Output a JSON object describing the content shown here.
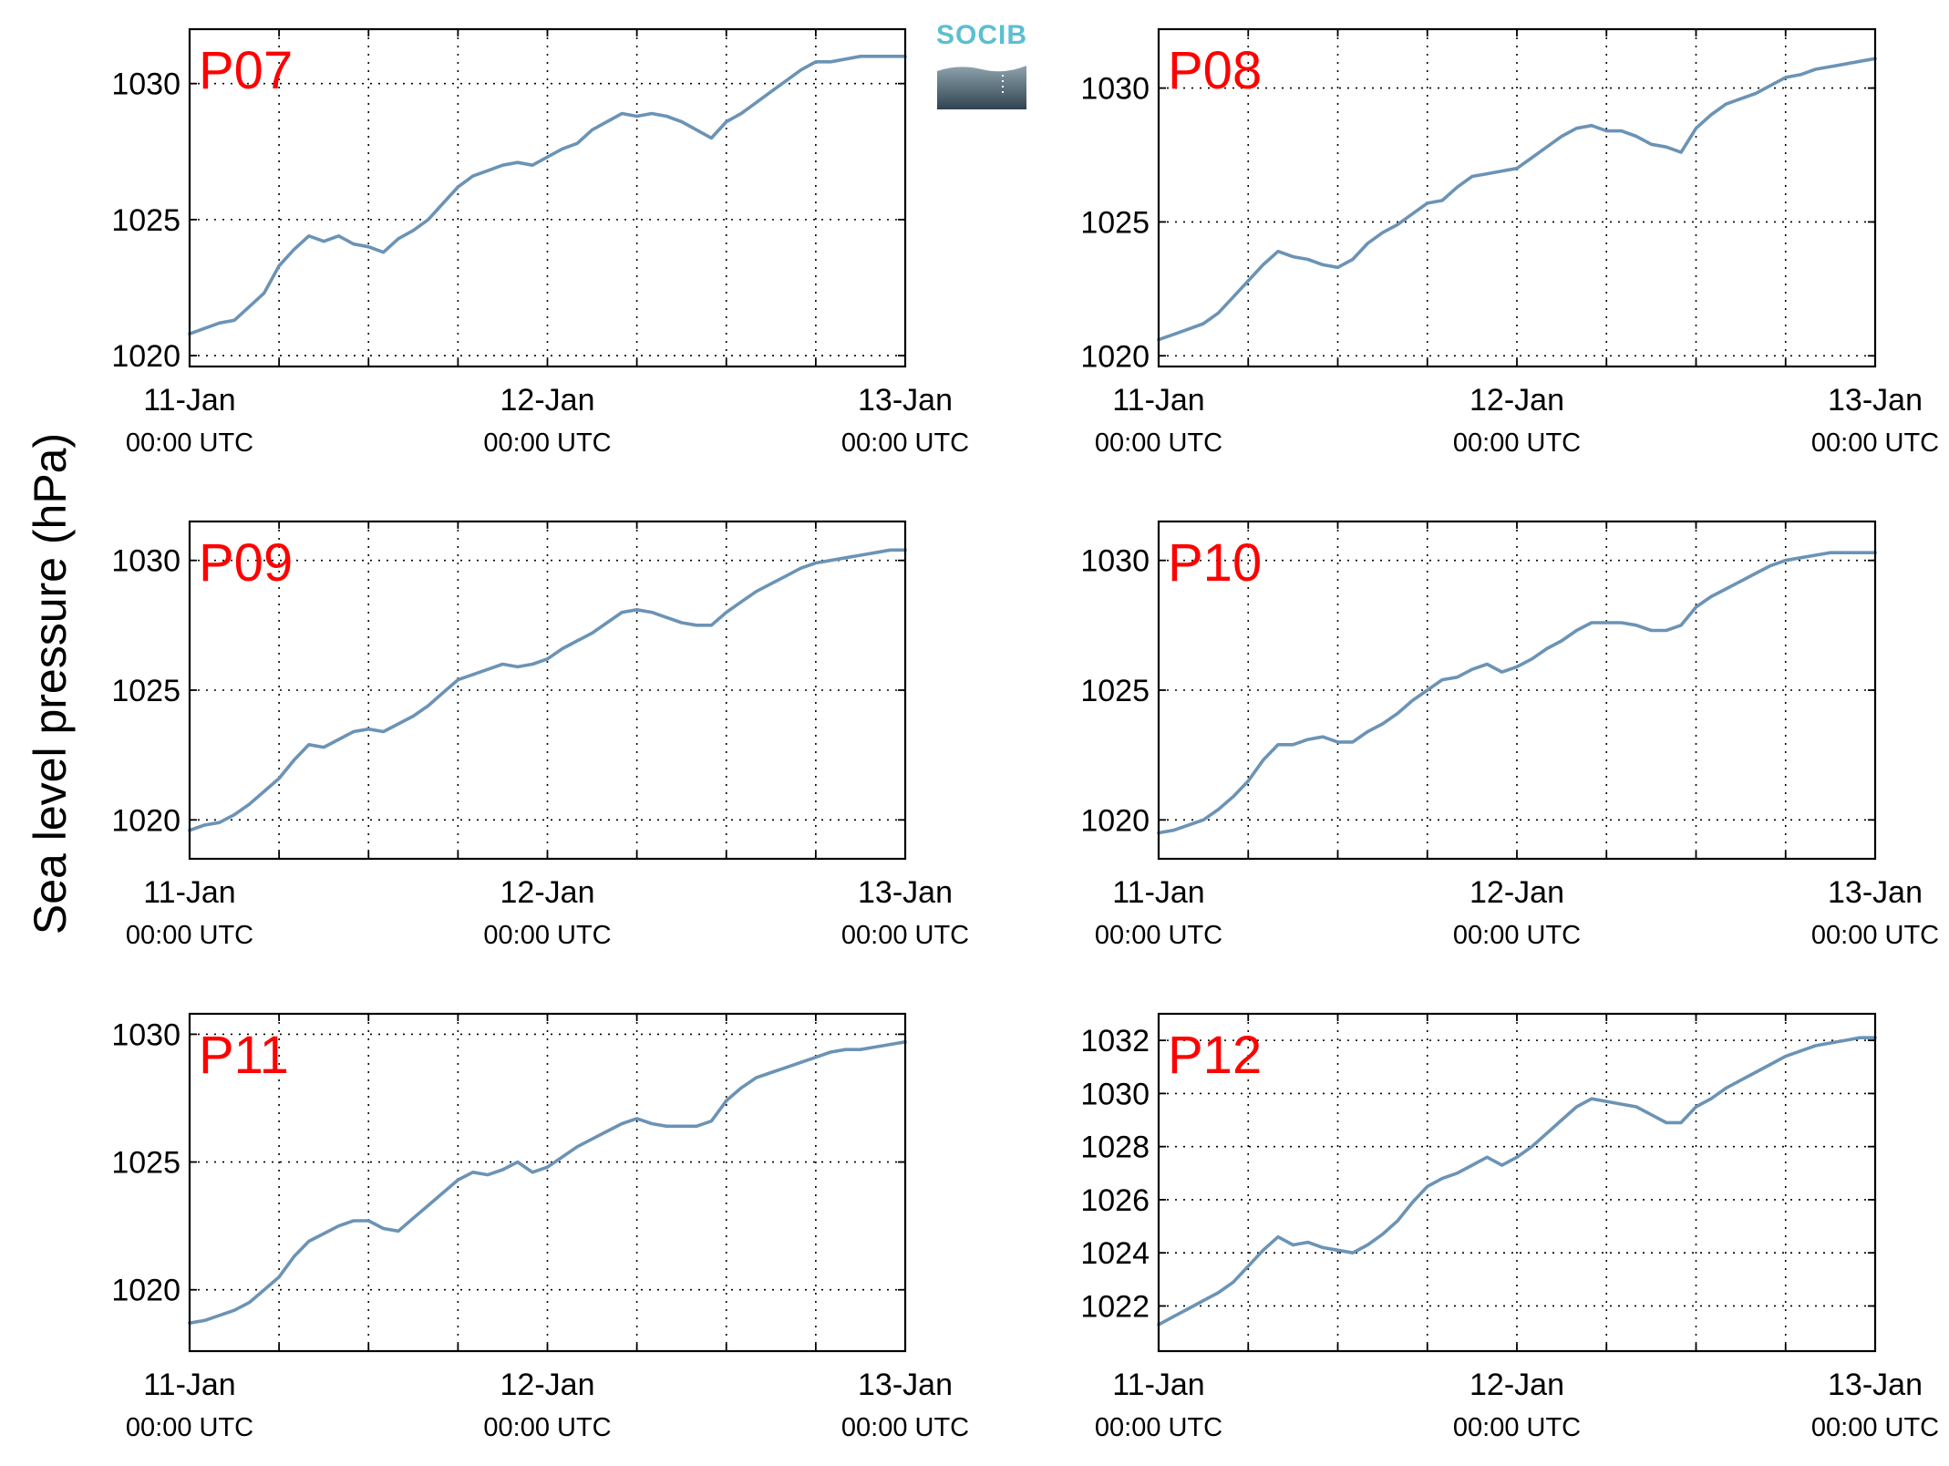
{
  "figure": {
    "ylabel": "Sea level pressure (hPa)",
    "logo": {
      "text": "SOCIB",
      "color": "#5bbfd0"
    },
    "line_color": "#6b93b5",
    "label_color": "#ff0000"
  },
  "chart_data": [
    {
      "type": "line",
      "panel": "P07",
      "label": "P07",
      "xlim": [
        0,
        48
      ],
      "ylim": [
        1019.6,
        1032
      ],
      "yticks": [
        "1020",
        "1025",
        "1030"
      ],
      "ytick_values": [
        1020,
        1025,
        1030
      ],
      "xticks": [
        {
          "x": 0,
          "date": "11-Jan",
          "time": "00:00 UTC"
        },
        {
          "x": 24,
          "date": "12-Jan",
          "time": "00:00 UTC"
        },
        {
          "x": 48,
          "date": "13-Jan",
          "time": "00:00 UTC"
        }
      ],
      "x_grid": [
        6,
        12,
        18,
        24,
        30,
        36,
        42
      ],
      "x": [
        0,
        1,
        2,
        3,
        4,
        5,
        6,
        7,
        8,
        9,
        10,
        11,
        12,
        13,
        14,
        15,
        16,
        17,
        18,
        19,
        20,
        21,
        22,
        23,
        24,
        25,
        26,
        27,
        28,
        29,
        30,
        31,
        32,
        33,
        34,
        35,
        36,
        37,
        38,
        39,
        40,
        41,
        42,
        43,
        44,
        45,
        46,
        47,
        48
      ],
      "y": [
        1020.8,
        1021.0,
        1021.2,
        1021.3,
        1021.8,
        1022.3,
        1023.3,
        1023.9,
        1024.4,
        1024.2,
        1024.4,
        1024.1,
        1024.0,
        1023.8,
        1024.3,
        1024.6,
        1025.0,
        1025.6,
        1026.2,
        1026.6,
        1026.8,
        1027.0,
        1027.1,
        1027.0,
        1027.3,
        1027.6,
        1027.8,
        1028.3,
        1028.6,
        1028.9,
        1028.8,
        1028.9,
        1028.8,
        1028.6,
        1028.3,
        1028.0,
        1028.6,
        1028.9,
        1029.3,
        1029.7,
        1030.1,
        1030.5,
        1030.8,
        1030.8,
        1030.9,
        1031.0,
        1031.0,
        1031.0,
        1031.0
      ]
    },
    {
      "type": "line",
      "panel": "P08",
      "label": "P08",
      "xlim": [
        0,
        48
      ],
      "ylim": [
        1019.6,
        1032.2
      ],
      "yticks": [
        "1020",
        "1025",
        "1030"
      ],
      "ytick_values": [
        1020,
        1025,
        1030
      ],
      "xticks": [
        {
          "x": 0,
          "date": "11-Jan",
          "time": "00:00 UTC"
        },
        {
          "x": 24,
          "date": "12-Jan",
          "time": "00:00 UTC"
        },
        {
          "x": 48,
          "date": "13-Jan",
          "time": "00:00 UTC"
        }
      ],
      "x_grid": [
        6,
        12,
        18,
        24,
        30,
        36,
        42
      ],
      "x": [
        0,
        1,
        2,
        3,
        4,
        5,
        6,
        7,
        8,
        9,
        10,
        11,
        12,
        13,
        14,
        15,
        16,
        17,
        18,
        19,
        20,
        21,
        22,
        23,
        24,
        25,
        26,
        27,
        28,
        29,
        30,
        31,
        32,
        33,
        34,
        35,
        36,
        37,
        38,
        39,
        40,
        41,
        42,
        43,
        44,
        45,
        46,
        47,
        48
      ],
      "y": [
        1020.6,
        1020.8,
        1021.0,
        1021.2,
        1021.6,
        1022.2,
        1022.8,
        1023.4,
        1023.9,
        1023.7,
        1023.6,
        1023.4,
        1023.3,
        1023.6,
        1024.2,
        1024.6,
        1024.9,
        1025.3,
        1025.7,
        1025.8,
        1026.3,
        1026.7,
        1026.8,
        1026.9,
        1027.0,
        1027.4,
        1027.8,
        1028.2,
        1028.5,
        1028.6,
        1028.4,
        1028.4,
        1028.2,
        1027.9,
        1027.8,
        1027.6,
        1028.5,
        1029.0,
        1029.4,
        1029.6,
        1029.8,
        1030.1,
        1030.4,
        1030.5,
        1030.7,
        1030.8,
        1030.9,
        1031.0,
        1031.1
      ]
    },
    {
      "type": "line",
      "panel": "P09",
      "label": "P09",
      "xlim": [
        0,
        48
      ],
      "ylim": [
        1018.5,
        1031.5
      ],
      "yticks": [
        "1020",
        "1025",
        "1030"
      ],
      "ytick_values": [
        1020,
        1025,
        1030
      ],
      "xticks": [
        {
          "x": 0,
          "date": "11-Jan",
          "time": "00:00 UTC"
        },
        {
          "x": 24,
          "date": "12-Jan",
          "time": "00:00 UTC"
        },
        {
          "x": 48,
          "date": "13-Jan",
          "time": "00:00 UTC"
        }
      ],
      "x_grid": [
        6,
        12,
        18,
        24,
        30,
        36,
        42
      ],
      "x": [
        0,
        1,
        2,
        3,
        4,
        5,
        6,
        7,
        8,
        9,
        10,
        11,
        12,
        13,
        14,
        15,
        16,
        17,
        18,
        19,
        20,
        21,
        22,
        23,
        24,
        25,
        26,
        27,
        28,
        29,
        30,
        31,
        32,
        33,
        34,
        35,
        36,
        37,
        38,
        39,
        40,
        41,
        42,
        43,
        44,
        45,
        46,
        47,
        48
      ],
      "y": [
        1019.6,
        1019.8,
        1019.9,
        1020.2,
        1020.6,
        1021.1,
        1021.6,
        1022.3,
        1022.9,
        1022.8,
        1023.1,
        1023.4,
        1023.5,
        1023.4,
        1023.7,
        1024.0,
        1024.4,
        1024.9,
        1025.4,
        1025.6,
        1025.8,
        1026.0,
        1025.9,
        1026.0,
        1026.2,
        1026.6,
        1026.9,
        1027.2,
        1027.6,
        1028.0,
        1028.1,
        1028.0,
        1027.8,
        1027.6,
        1027.5,
        1027.5,
        1028.0,
        1028.4,
        1028.8,
        1029.1,
        1029.4,
        1029.7,
        1029.9,
        1030.0,
        1030.1,
        1030.2,
        1030.3,
        1030.4,
        1030.4
      ]
    },
    {
      "type": "line",
      "panel": "P10",
      "label": "P10",
      "xlim": [
        0,
        48
      ],
      "ylim": [
        1018.5,
        1031.5
      ],
      "yticks": [
        "1020",
        "1025",
        "1030"
      ],
      "ytick_values": [
        1020,
        1025,
        1030
      ],
      "xticks": [
        {
          "x": 0,
          "date": "11-Jan",
          "time": "00:00 UTC"
        },
        {
          "x": 24,
          "date": "12-Jan",
          "time": "00:00 UTC"
        },
        {
          "x": 48,
          "date": "13-Jan",
          "time": "00:00 UTC"
        }
      ],
      "x_grid": [
        6,
        12,
        18,
        24,
        30,
        36,
        42
      ],
      "x": [
        0,
        1,
        2,
        3,
        4,
        5,
        6,
        7,
        8,
        9,
        10,
        11,
        12,
        13,
        14,
        15,
        16,
        17,
        18,
        19,
        20,
        21,
        22,
        23,
        24,
        25,
        26,
        27,
        28,
        29,
        30,
        31,
        32,
        33,
        34,
        35,
        36,
        37,
        38,
        39,
        40,
        41,
        42,
        43,
        44,
        45,
        46,
        47,
        48
      ],
      "y": [
        1019.5,
        1019.6,
        1019.8,
        1020.0,
        1020.4,
        1020.9,
        1021.5,
        1022.3,
        1022.9,
        1022.9,
        1023.1,
        1023.2,
        1023.0,
        1023.0,
        1023.4,
        1023.7,
        1024.1,
        1024.6,
        1025.0,
        1025.4,
        1025.5,
        1025.8,
        1026.0,
        1025.7,
        1025.9,
        1026.2,
        1026.6,
        1026.9,
        1027.3,
        1027.6,
        1027.6,
        1027.6,
        1027.5,
        1027.3,
        1027.3,
        1027.5,
        1028.2,
        1028.6,
        1028.9,
        1029.2,
        1029.5,
        1029.8,
        1030.0,
        1030.1,
        1030.2,
        1030.3,
        1030.3,
        1030.3,
        1030.3
      ]
    },
    {
      "type": "line",
      "panel": "P11",
      "label": "P11",
      "xlim": [
        0,
        48
      ],
      "ylim": [
        1017.6,
        1030.8
      ],
      "yticks": [
        "1020",
        "1025",
        "1030"
      ],
      "ytick_values": [
        1020,
        1025,
        1030
      ],
      "xticks": [
        {
          "x": 0,
          "date": "11-Jan",
          "time": "00:00 UTC"
        },
        {
          "x": 24,
          "date": "12-Jan",
          "time": "00:00 UTC"
        },
        {
          "x": 48,
          "date": "13-Jan",
          "time": "00:00 UTC"
        }
      ],
      "x_grid": [
        6,
        12,
        18,
        24,
        30,
        36,
        42
      ],
      "x": [
        0,
        1,
        2,
        3,
        4,
        5,
        6,
        7,
        8,
        9,
        10,
        11,
        12,
        13,
        14,
        15,
        16,
        17,
        18,
        19,
        20,
        21,
        22,
        23,
        24,
        25,
        26,
        27,
        28,
        29,
        30,
        31,
        32,
        33,
        34,
        35,
        36,
        37,
        38,
        39,
        40,
        41,
        42,
        43,
        44,
        45,
        46,
        47,
        48
      ],
      "y": [
        1018.7,
        1018.8,
        1019.0,
        1019.2,
        1019.5,
        1020.0,
        1020.5,
        1021.3,
        1021.9,
        1022.2,
        1022.5,
        1022.7,
        1022.7,
        1022.4,
        1022.3,
        1022.8,
        1023.3,
        1023.8,
        1024.3,
        1024.6,
        1024.5,
        1024.7,
        1025.0,
        1024.6,
        1024.8,
        1025.2,
        1025.6,
        1025.9,
        1026.2,
        1026.5,
        1026.7,
        1026.5,
        1026.4,
        1026.4,
        1026.4,
        1026.6,
        1027.4,
        1027.9,
        1028.3,
        1028.5,
        1028.7,
        1028.9,
        1029.1,
        1029.3,
        1029.4,
        1029.4,
        1029.5,
        1029.6,
        1029.7
      ]
    },
    {
      "type": "line",
      "panel": "P12",
      "label": "P12",
      "xlim": [
        0,
        48
      ],
      "ylim": [
        1020.3,
        1033.0
      ],
      "yticks": [
        "1022",
        "1024",
        "1026",
        "1028",
        "1030",
        "1032"
      ],
      "ytick_values": [
        1022,
        1024,
        1026,
        1028,
        1030,
        1032
      ],
      "xticks": [
        {
          "x": 0,
          "date": "11-Jan",
          "time": "00:00 UTC"
        },
        {
          "x": 24,
          "date": "12-Jan",
          "time": "00:00 UTC"
        },
        {
          "x": 48,
          "date": "13-Jan",
          "time": "00:00 UTC"
        }
      ],
      "x_grid": [
        6,
        12,
        18,
        24,
        30,
        36,
        42
      ],
      "x": [
        0,
        1,
        2,
        3,
        4,
        5,
        6,
        7,
        8,
        9,
        10,
        11,
        12,
        13,
        14,
        15,
        16,
        17,
        18,
        19,
        20,
        21,
        22,
        23,
        24,
        25,
        26,
        27,
        28,
        29,
        30,
        31,
        32,
        33,
        34,
        35,
        36,
        37,
        38,
        39,
        40,
        41,
        42,
        43,
        44,
        45,
        46,
        47,
        48
      ],
      "y": [
        1021.3,
        1021.6,
        1021.9,
        1022.2,
        1022.5,
        1022.9,
        1023.5,
        1024.1,
        1024.6,
        1024.3,
        1024.4,
        1024.2,
        1024.1,
        1024.0,
        1024.3,
        1024.7,
        1025.2,
        1025.9,
        1026.5,
        1026.8,
        1027.0,
        1027.3,
        1027.6,
        1027.3,
        1027.6,
        1028.0,
        1028.5,
        1029.0,
        1029.5,
        1029.8,
        1029.7,
        1029.6,
        1029.5,
        1029.2,
        1028.9,
        1028.9,
        1029.5,
        1029.8,
        1030.2,
        1030.5,
        1030.8,
        1031.1,
        1031.4,
        1031.6,
        1031.8,
        1031.9,
        1032.0,
        1032.1,
        1032.1
      ]
    }
  ]
}
